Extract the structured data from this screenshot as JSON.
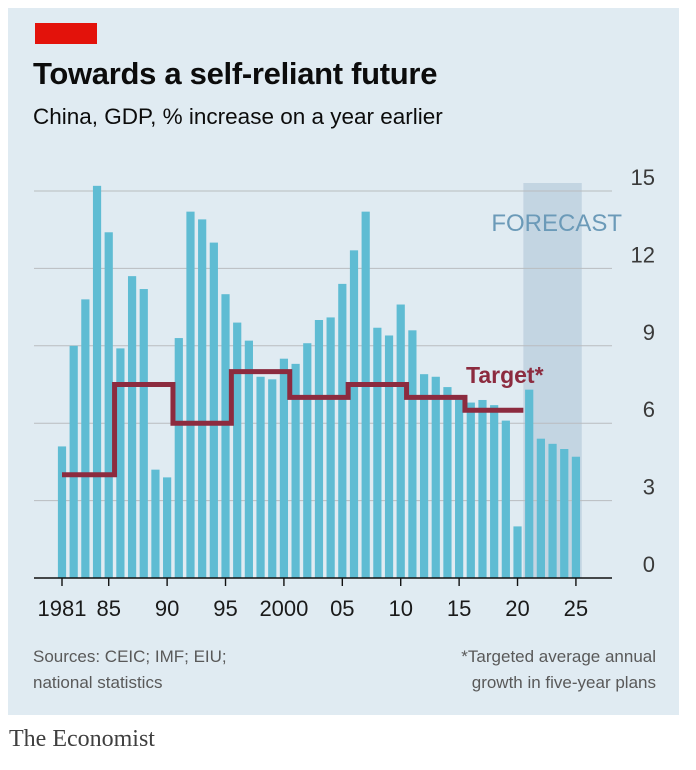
{
  "header": {
    "title": "Towards a self-reliant future",
    "subtitle": "China, GDP, % increase on a year earlier"
  },
  "footer": {
    "sources_line1": "Sources: CEIC; IMF; EIU;",
    "sources_line2": "national statistics",
    "note_line1": "*Targeted average annual",
    "note_line2": "growth in five-year plans"
  },
  "brand": "The Economist",
  "colors": {
    "bar": "#5fbcd3",
    "target_line": "#8c2b3f",
    "forecast_shade": "#c3d5e2",
    "forecast_text": "#6b9ab8",
    "brand_red": "#e3120b",
    "panel": "#e0ebf2"
  },
  "chart_data": {
    "type": "bar",
    "title": "Towards a self-reliant future",
    "subtitle": "China, GDP, % increase on a year earlier",
    "ylim": [
      0,
      15
    ],
    "yticks": [
      0,
      3,
      6,
      9,
      12,
      15
    ],
    "y_axis_side": "right",
    "grid": true,
    "xticks": [
      {
        "year": 1981,
        "label": "1981"
      },
      {
        "year": 1985,
        "label": "85"
      },
      {
        "year": 1990,
        "label": "90"
      },
      {
        "year": 1995,
        "label": "95"
      },
      {
        "year": 2000,
        "label": "2000"
      },
      {
        "year": 2005,
        "label": "05"
      },
      {
        "year": 2010,
        "label": "10"
      },
      {
        "year": 2015,
        "label": "15"
      },
      {
        "year": 2020,
        "label": "20"
      },
      {
        "year": 2025,
        "label": "25"
      }
    ],
    "series": [
      {
        "type": "bar",
        "x": [
          1981,
          1982,
          1983,
          1984,
          1985,
          1986,
          1987,
          1988,
          1989,
          1990,
          1991,
          1992,
          1993,
          1994,
          1995,
          1996,
          1997,
          1998,
          1999,
          2000,
          2001,
          2002,
          2003,
          2004,
          2005,
          2006,
          2007,
          2008,
          2009,
          2010,
          2011,
          2012,
          2013,
          2014,
          2015,
          2016,
          2017,
          2018,
          2019,
          2020,
          2021,
          2022,
          2023,
          2024,
          2025
        ],
        "values": [
          5.1,
          9.0,
          10.8,
          15.2,
          13.4,
          8.9,
          11.7,
          11.2,
          4.2,
          3.9,
          9.3,
          14.2,
          13.9,
          13.0,
          11.0,
          9.9,
          9.2,
          7.8,
          7.7,
          8.5,
          8.3,
          9.1,
          10.0,
          10.1,
          11.4,
          12.7,
          14.2,
          9.7,
          9.4,
          10.6,
          9.6,
          7.9,
          7.8,
          7.4,
          7.0,
          6.8,
          6.9,
          6.7,
          6.1,
          2.0,
          7.3,
          5.4,
          5.2,
          5.0,
          4.7
        ]
      },
      {
        "type": "step",
        "name": "Target*",
        "segments": [
          {
            "from": 1981,
            "to": 1985,
            "value": 4.0
          },
          {
            "from": 1986,
            "to": 1990,
            "value": 7.5
          },
          {
            "from": 1991,
            "to": 1995,
            "value": 6.0
          },
          {
            "from": 1996,
            "to": 2000,
            "value": 8.0
          },
          {
            "from": 2001,
            "to": 2005,
            "value": 7.0
          },
          {
            "from": 2006,
            "to": 2010,
            "value": 7.5
          },
          {
            "from": 2011,
            "to": 2015,
            "value": 7.0
          },
          {
            "from": 2016,
            "to": 2020,
            "value": 6.5
          }
        ]
      }
    ],
    "forecast": {
      "label": "FORECAST",
      "from": 2021,
      "to": 2025
    }
  }
}
